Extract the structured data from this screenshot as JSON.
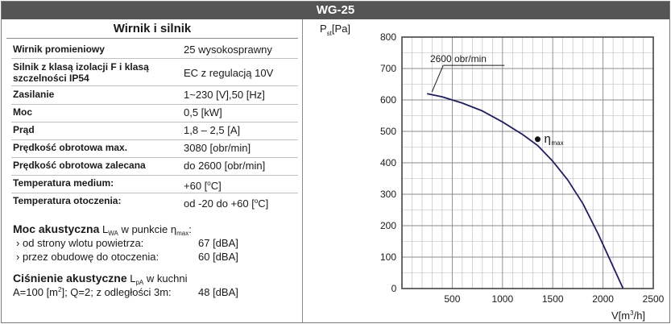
{
  "header": {
    "title": "WG-25"
  },
  "specs": {
    "title": "Wirnik i silnik",
    "rows": [
      {
        "key": "Wirnik promieniowy",
        "value": "25 wysokosprawny"
      },
      {
        "key": "Silnik z klasą izolacji F i klasą",
        "key2": "szczelności IP54",
        "value": "EC z regulacją 10V"
      },
      {
        "key": "Zasilanie",
        "value": "1~230 [V],50 [Hz]"
      },
      {
        "key": "Moc",
        "value": "0,5 [kW]"
      },
      {
        "key": "Prąd",
        "value": "1,8 – 2,5 [A]"
      },
      {
        "key": "Prędkość obrotowa max.",
        "value": "3080 [obr/min]"
      },
      {
        "key": "Prędkość obrotowa zalecana",
        "value": "do 2600 [obr/min]"
      },
      {
        "key": "Temperatura medium:",
        "value_pre": "+60 [",
        "value_sup": "o",
        "value_post": "C]"
      },
      {
        "key": "Temperatura otoczenia:",
        "value_pre": "od -20 do +60 [",
        "value_sup": "o",
        "value_post": "C]"
      }
    ]
  },
  "acoustic_power": {
    "title": "Moc akustyczna",
    "symbol": "L",
    "symbol_sub": "WA",
    "text_mid": " w punkcie η",
    "eta_sub": "max",
    "text_end": ":",
    "lines": [
      {
        "label": "od strony wlotu powietrza:",
        "value": "67 [dBA]"
      },
      {
        "label": "przez obudowę do otoczenia:",
        "value": "60 [dBA]"
      }
    ]
  },
  "acoustic_pressure": {
    "title": "Ciśnienie akustyczne",
    "symbol": "L",
    "symbol_sub": "pA",
    "text_end": " w kuchni",
    "line_pre": "A=100 [m",
    "line_sup": "2",
    "line_post": "]; Q=2; z odległości 3m:",
    "value": "48 [dBA]"
  },
  "chart_data": {
    "type": "line",
    "title": "",
    "ylabel_main": "P",
    "ylabel_sub": "st",
    "ylabel_unit": "[Pa]",
    "xlabel_pre": "V[m",
    "xlabel_sup": "3",
    "xlabel_post": "/h]",
    "xlim": [
      0,
      2500
    ],
    "ylim": [
      0,
      800
    ],
    "x_ticks": [
      0,
      500,
      1000,
      1500,
      2000,
      2500
    ],
    "y_ticks": [
      100,
      200,
      300,
      400,
      500,
      600,
      700,
      800
    ],
    "y_zero_label": "0",
    "grid": true,
    "series": [
      {
        "name": "2600 obr/min",
        "color": "#1f1f5e",
        "x": [
          250,
          400,
          600,
          800,
          1000,
          1200,
          1350,
          1500,
          1650,
          1800,
          1950,
          2050,
          2150,
          2200
        ],
        "y": [
          620,
          610,
          590,
          565,
          530,
          490,
          455,
          405,
          345,
          270,
          175,
          105,
          35,
          0
        ]
      }
    ],
    "annotations": [
      {
        "type": "point",
        "label": "η",
        "label_sub": "max",
        "x": 1350,
        "y": 475
      },
      {
        "type": "label",
        "text": "2600 obr/min"
      }
    ]
  }
}
